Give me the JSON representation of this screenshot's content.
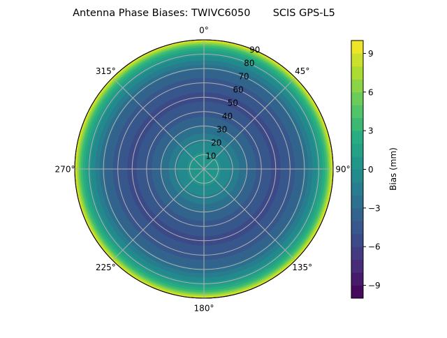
{
  "chart_data": {
    "type": "heatmap",
    "subtype": "polar-contour",
    "title": "Antenna Phase Biases: TWIVC6050       SCIS GPS-L5",
    "theta_direction": "clockwise",
    "theta_zero": "top",
    "theta_ticks": [
      "0°",
      "45°",
      "90°",
      "135°",
      "180°",
      "225°",
      "270°",
      "315°"
    ],
    "r_ticks": [
      "10",
      "20",
      "30",
      "40",
      "50",
      "60",
      "70",
      "80",
      "90"
    ],
    "rlim": [
      0,
      90
    ],
    "grid": true,
    "colormap": "viridis",
    "colorbar": {
      "label": "Bias (mm)",
      "range": [
        -10,
        10
      ],
      "levels_step": 1,
      "ticks": [
        "9",
        "6",
        "3",
        "0",
        "−3",
        "−6",
        "−9"
      ],
      "tick_values": [
        9,
        6,
        3,
        0,
        -3,
        -6,
        -9
      ]
    },
    "radial_profile": {
      "zenith_deg": [
        0,
        10,
        20,
        30,
        40,
        50,
        60,
        70,
        80,
        85,
        90
      ],
      "bias_mm": [
        0.5,
        0.2,
        -1.2,
        -3.0,
        -4.6,
        -5.2,
        -4.6,
        -2.8,
        0.5,
        3.5,
        10
      ]
    }
  }
}
